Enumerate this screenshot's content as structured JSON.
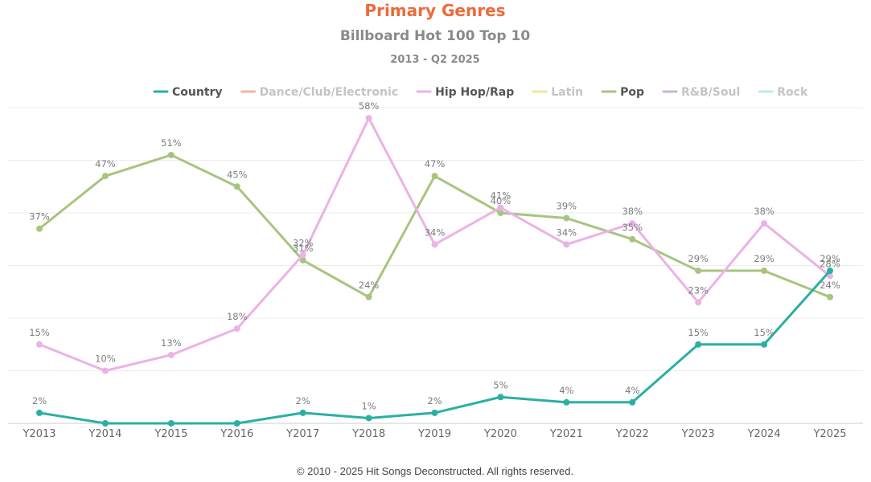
{
  "chart_data": {
    "type": "line",
    "title": "Primary Genres",
    "subtitle": "Billboard Hot 100 Top 10",
    "subtitle2": "2013 - Q2 2025",
    "categories": [
      "Y2013",
      "Y2014",
      "Y2015",
      "Y2016",
      "Y2017",
      "Y2018",
      "Y2019",
      "Y2020",
      "Y2021",
      "Y2022",
      "Y2023",
      "Y2024",
      "Y2025"
    ],
    "ylim": [
      0,
      60
    ],
    "grid": true,
    "legend_position": "top-center",
    "legend": [
      {
        "name": "Country",
        "color": "#2ab0a2",
        "visible": true
      },
      {
        "name": "Dance/Club/Electronic",
        "color": "#f2b4a2",
        "visible": false
      },
      {
        "name": "Hip Hop/Rap",
        "color": "#ecb2e6",
        "visible": true
      },
      {
        "name": "Latin",
        "color": "#f6e39a",
        "visible": false
      },
      {
        "name": "Pop",
        "color": "#a7c57f",
        "visible": true
      },
      {
        "name": "R&B/Soul",
        "color": "#cab4d6",
        "visible": false
      },
      {
        "name": "Rock",
        "color": "#bfeaed",
        "visible": false
      }
    ],
    "series": [
      {
        "name": "Country",
        "color": "#2ab0a2",
        "values": [
          2,
          0,
          0,
          0,
          2,
          1,
          2,
          5,
          4,
          4,
          15,
          15,
          29
        ],
        "labels": [
          "2%",
          "",
          "",
          "",
          "2%",
          "1%",
          "2%",
          "5%",
          "4%",
          "4%",
          "15%",
          "15%",
          "29%"
        ]
      },
      {
        "name": "Hip Hop/Rap",
        "color": "#ecb2e6",
        "values": [
          15,
          10,
          13,
          18,
          32,
          58,
          34,
          41,
          34,
          38,
          23,
          38,
          28
        ],
        "labels": [
          "15%",
          "10%",
          "13%",
          "18%",
          "32%",
          "58%",
          "34%",
          "41%",
          "34%",
          "38%",
          "23%",
          "38%",
          "28%"
        ]
      },
      {
        "name": "Pop",
        "color": "#a7c57f",
        "values": [
          37,
          47,
          51,
          45,
          31,
          24,
          47,
          40,
          39,
          35,
          29,
          29,
          24
        ],
        "labels": [
          "37%",
          "47%",
          "51%",
          "45%",
          "31%",
          "24%",
          "47%",
          "40%",
          "39%",
          "35%",
          "29%",
          "29%",
          "24%"
        ]
      }
    ]
  },
  "footer": "© 2010 - 2025 Hit Songs Deconstructed. All rights reserved."
}
